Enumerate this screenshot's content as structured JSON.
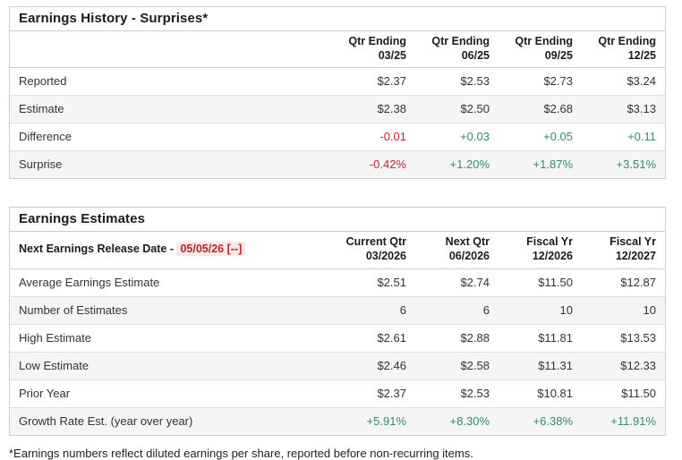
{
  "colors": {
    "positive": "#338a72",
    "negative": "#b3282d",
    "release_highlight_bg": "#fbe7e7",
    "row_stripe_bg": "#f5f5f5",
    "border": "#cccccc"
  },
  "history": {
    "title": "Earnings History - Surprises*",
    "headers": [
      {
        "line1": "Qtr Ending",
        "line2": "03/25"
      },
      {
        "line1": "Qtr Ending",
        "line2": "06/25"
      },
      {
        "line1": "Qtr Ending",
        "line2": "09/25"
      },
      {
        "line1": "Qtr Ending",
        "line2": "12/25"
      }
    ],
    "rows": [
      {
        "label": "Reported",
        "values": [
          "$2.37",
          "$2.53",
          "$2.73",
          "$3.24"
        ]
      },
      {
        "label": "Estimate",
        "values": [
          "$2.38",
          "$2.50",
          "$2.68",
          "$3.13"
        ]
      },
      {
        "label": "Difference",
        "values": [
          "-0.01",
          "+0.03",
          "+0.05",
          "+0.11"
        ]
      },
      {
        "label": "Surprise",
        "values": [
          "-0.42%",
          "+1.20%",
          "+1.87%",
          "+3.51%"
        ]
      }
    ]
  },
  "estimates": {
    "title": "Earnings Estimates",
    "release_label": "Next Earnings Release Date - ",
    "release_date": "05/05/26 [--]",
    "headers": [
      {
        "line1": "Current Qtr",
        "line2": "03/2026"
      },
      {
        "line1": "Next Qtr",
        "line2": "06/2026"
      },
      {
        "line1": "Fiscal Yr",
        "line2": "12/2026"
      },
      {
        "line1": "Fiscal Yr",
        "line2": "12/2027"
      }
    ],
    "rows": [
      {
        "label": "Average Earnings Estimate",
        "values": [
          "$2.51",
          "$2.74",
          "$11.50",
          "$12.87"
        ]
      },
      {
        "label": "Number of Estimates",
        "values": [
          "6",
          "6",
          "10",
          "10"
        ]
      },
      {
        "label": "High Estimate",
        "values": [
          "$2.61",
          "$2.88",
          "$11.81",
          "$13.53"
        ]
      },
      {
        "label": "Low Estimate",
        "values": [
          "$2.46",
          "$2.58",
          "$11.31",
          "$12.33"
        ]
      },
      {
        "label": "Prior Year",
        "values": [
          "$2.37",
          "$2.53",
          "$10.81",
          "$11.50"
        ]
      },
      {
        "label": "Growth Rate Est. (year over year)",
        "values": [
          "+5.91%",
          "+8.30%",
          "+6.38%",
          "+11.91%"
        ]
      }
    ]
  },
  "footnote": "*Earnings numbers reflect diluted earnings per share, reported before non-recurring items."
}
